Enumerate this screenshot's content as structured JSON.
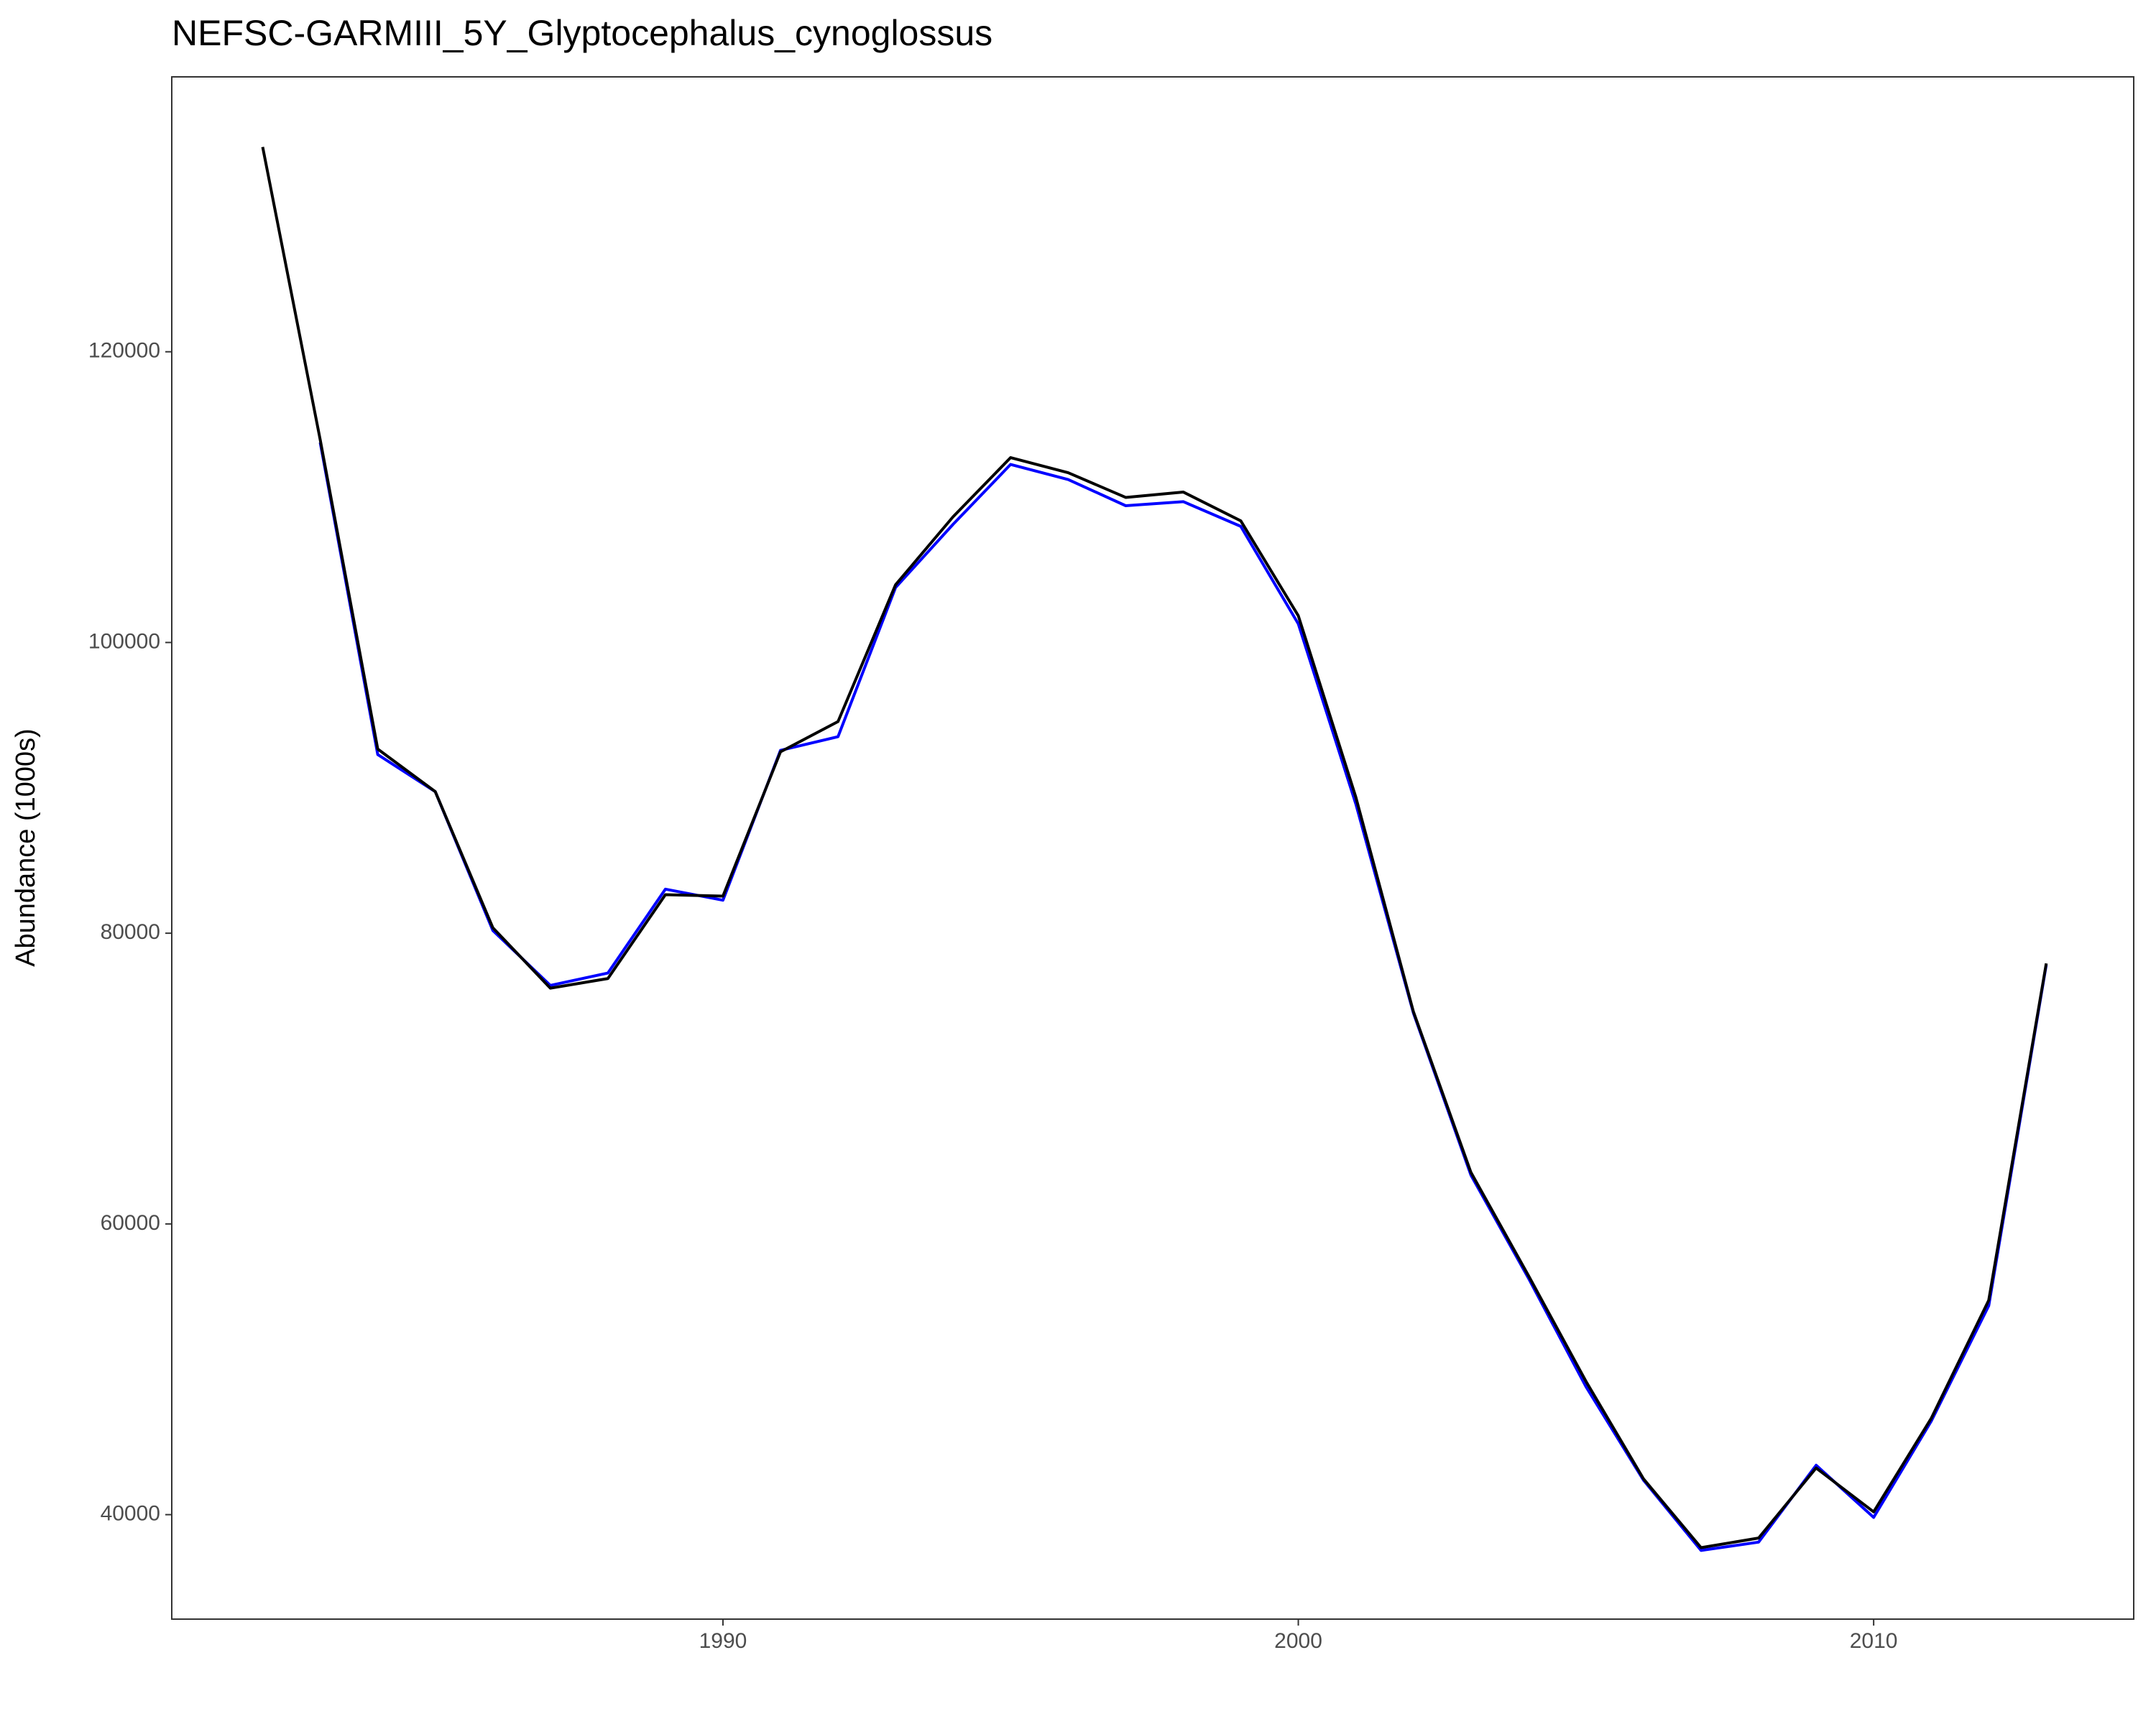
{
  "chart_data": {
    "type": "line",
    "title": "NEFSC-GARMIII_5Y_Glyptocephalus_cynoglossus",
    "y_label": "Abundance (1000s)",
    "x": [
      1982,
      1983,
      1984,
      1985,
      1986,
      1987,
      1988,
      1989,
      1990,
      1991,
      1992,
      1993,
      1994,
      1995,
      1996,
      1997,
      1998,
      1999,
      2000,
      2001,
      2002,
      2003,
      2004,
      2005,
      2006,
      2007,
      2008,
      2009,
      2010,
      2011,
      2012,
      2013
    ],
    "series": [
      {
        "color": "#0000ff",
        "values": [
          null,
          113760,
          92290,
          89740,
          80190,
          76410,
          77260,
          83030,
          82270,
          92580,
          93520,
          103780,
          108130,
          112250,
          111210,
          109410,
          109690,
          107990,
          101280,
          88890,
          74520,
          63360,
          56270,
          48800,
          42370,
          37540,
          38110,
          43400,
          39810,
          46430,
          54370,
          77830
        ]
      },
      {
        "color": "#000000",
        "values": [
          134090,
          113950,
          92670,
          89740,
          80380,
          76220,
          76880,
          82650,
          82550,
          92480,
          94560,
          103970,
          108650,
          112720,
          111680,
          109980,
          110350,
          108370,
          101840,
          89360,
          74610,
          63550,
          56450,
          49170,
          42460,
          37730,
          38390,
          43210,
          40190,
          46620,
          54750,
          77920
        ]
      }
    ],
    "xlim": [
      1980.42,
      2014.52
    ],
    "xticks": [
      1990,
      2000,
      2010
    ],
    "ylim": [
      32813,
      138912
    ],
    "yticks": [
      40000,
      60000,
      80000,
      100000,
      120000
    ],
    "grid": false
  }
}
